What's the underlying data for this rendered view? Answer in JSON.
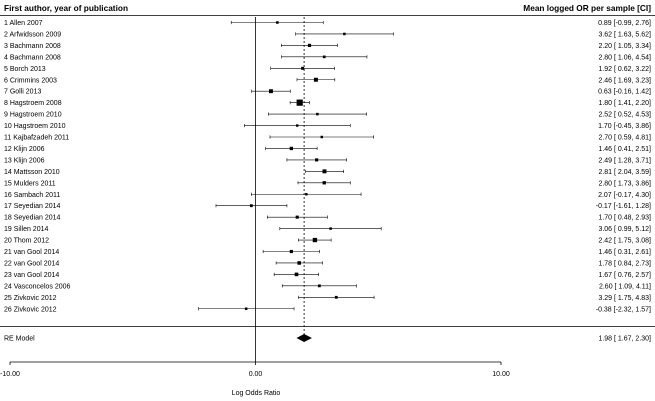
{
  "chart_data": {
    "type": "forest",
    "header_left": "First author, year of publication",
    "header_right": "Mean logged OR per sample [CI]",
    "xlabel": "Log Odds Ratio",
    "xlim": [
      -10,
      10
    ],
    "xticks": [
      -10,
      0,
      10
    ],
    "xtick_labels": [
      "-10.00",
      "0.00",
      "10.00"
    ],
    "reference_line": 0,
    "studies": [
      {
        "label": "1 Allen 2007",
        "est": 0.89,
        "lo": -0.99,
        "hi": 2.76,
        "ci_text": "0.89 [-0.99, 2.76]"
      },
      {
        "label": "2 Arfwidsson 2009",
        "est": 3.62,
        "lo": 1.63,
        "hi": 5.62,
        "ci_text": "3.62 [ 1.63, 5.62]"
      },
      {
        "label": "3 Bachmann 2008",
        "est": 2.2,
        "lo": 1.05,
        "hi": 3.34,
        "ci_text": "2.20 [ 1.05, 3.34]"
      },
      {
        "label": "4 Bachmann 2008",
        "est": 2.8,
        "lo": 1.06,
        "hi": 4.54,
        "ci_text": "2.80 [ 1.06, 4.54]"
      },
      {
        "label": "5 Borch 2013",
        "est": 1.92,
        "lo": 0.62,
        "hi": 3.22,
        "ci_text": "1.92 [ 0.62, 3.22]"
      },
      {
        "label": "6 Crimmins 2003",
        "est": 2.46,
        "lo": 1.69,
        "hi": 3.23,
        "ci_text": "2.46 [ 1.69, 3.23]"
      },
      {
        "label": "7 Golli 2013",
        "est": 0.63,
        "lo": -0.16,
        "hi": 1.42,
        "ci_text": "0.63 [-0.16, 1.42]"
      },
      {
        "label": "8 Hagstroem 2008",
        "est": 1.8,
        "lo": 1.41,
        "hi": 2.2,
        "ci_text": "1.80 [ 1.41, 2.20]"
      },
      {
        "label": "9 Hagstroem 2010",
        "est": 2.52,
        "lo": 0.52,
        "hi": 4.53,
        "ci_text": "2.52 [ 0.52, 4.53]"
      },
      {
        "label": "10 Hagstroem 2010",
        "est": 1.7,
        "lo": -0.45,
        "hi": 3.86,
        "ci_text": "1.70 [-0.45, 3.86]"
      },
      {
        "label": "11 Kajbafzadeh 2011",
        "est": 2.7,
        "lo": 0.59,
        "hi": 4.81,
        "ci_text": "2.70 [ 0.59, 4.81]"
      },
      {
        "label": "12 Klijn 2006",
        "est": 1.46,
        "lo": 0.41,
        "hi": 2.51,
        "ci_text": "1.46 [ 0.41, 2.51]"
      },
      {
        "label": "13 Klijn 2006",
        "est": 2.49,
        "lo": 1.28,
        "hi": 3.71,
        "ci_text": "2.49 [ 1.28, 3.71]"
      },
      {
        "label": "14 Mattsson 2010",
        "est": 2.81,
        "lo": 2.04,
        "hi": 3.59,
        "ci_text": "2.81 [ 2.04, 3.59]"
      },
      {
        "label": "15 Mulders 2011",
        "est": 2.8,
        "lo": 1.73,
        "hi": 3.86,
        "ci_text": "2.80 [ 1.73, 3.86]"
      },
      {
        "label": "16 Sambach 2011",
        "est": 2.07,
        "lo": -0.17,
        "hi": 4.3,
        "ci_text": "2.07 [-0.17, 4.30]"
      },
      {
        "label": "17 Seyedian 2014",
        "est": -0.17,
        "lo": -1.61,
        "hi": 1.28,
        "ci_text": "-0.17 [-1.61, 1.28]"
      },
      {
        "label": "18 Seyedian 2014",
        "est": 1.7,
        "lo": 0.48,
        "hi": 2.93,
        "ci_text": "1.70 [ 0.48, 2.93]"
      },
      {
        "label": "19 Sillen 2014",
        "est": 3.06,
        "lo": 0.99,
        "hi": 5.12,
        "ci_text": "3.06 [ 0.99, 5.12]"
      },
      {
        "label": "20 Thom 2012",
        "est": 2.42,
        "lo": 1.75,
        "hi": 3.08,
        "ci_text": "2.42 [ 1.75, 3.08]"
      },
      {
        "label": "21 van Gool 2014",
        "est": 1.46,
        "lo": 0.31,
        "hi": 2.61,
        "ci_text": "1.46 [ 0.31, 2.61]"
      },
      {
        "label": "22 van Gool 2014",
        "est": 1.78,
        "lo": 0.84,
        "hi": 2.73,
        "ci_text": "1.78 [ 0.84, 2.73]"
      },
      {
        "label": "23 van Gool 2014",
        "est": 1.67,
        "lo": 0.76,
        "hi": 2.57,
        "ci_text": "1.67 [ 0.76, 2.57]"
      },
      {
        "label": "24 Vasconcelos 2006",
        "est": 2.6,
        "lo": 1.09,
        "hi": 4.11,
        "ci_text": "2.60 [ 1.09, 4.11]"
      },
      {
        "label": "25 Zivkovic 2012",
        "est": 3.29,
        "lo": 1.75,
        "hi": 4.83,
        "ci_text": "3.29 [ 1.75, 4.83]"
      },
      {
        "label": "26 Zivkovic 2012",
        "est": -0.38,
        "lo": -2.32,
        "hi": 1.57,
        "ci_text": "-0.38 [-2.32, 1.57]"
      }
    ],
    "summary": {
      "label": "RE Model",
      "est": 1.98,
      "lo": 1.67,
      "hi": 2.3,
      "ci_text": "1.98 [ 1.67, 2.30]"
    }
  }
}
